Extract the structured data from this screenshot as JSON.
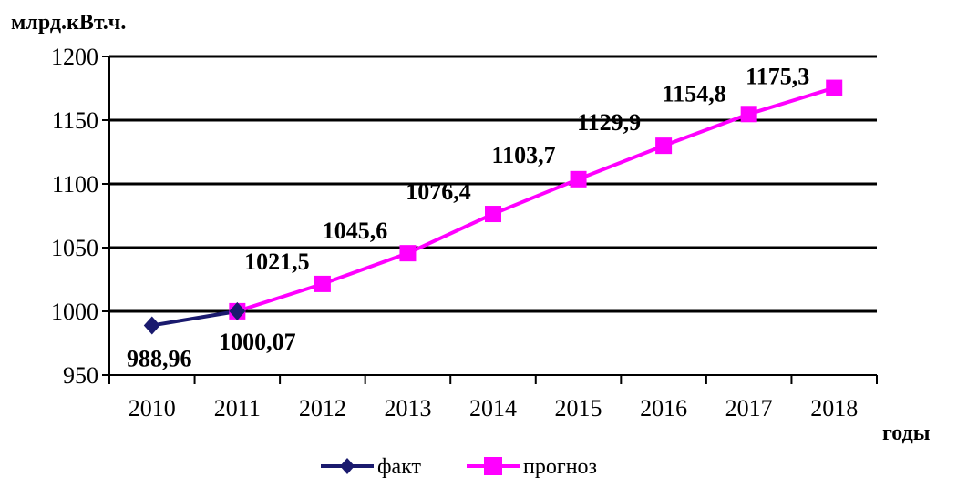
{
  "chart_data": {
    "type": "line",
    "ylabel": "млрд.кВт.ч.",
    "xlabel": "годы",
    "categories": [
      "2010",
      "2011",
      "2012",
      "2013",
      "2014",
      "2015",
      "2016",
      "2017",
      "2018"
    ],
    "ylim": [
      950,
      1200
    ],
    "yticks": [
      950,
      1000,
      1050,
      1100,
      1150,
      1200
    ],
    "grid": true,
    "legend_position": "bottom",
    "series": [
      {
        "name": "факт",
        "color": "#1a1a6e",
        "marker": "diamond",
        "points": [
          {
            "x": "2010",
            "y": 988.96,
            "label": "988,96"
          },
          {
            "x": "2011",
            "y": 1000.07,
            "label": "1000,07"
          }
        ]
      },
      {
        "name": "прогноз",
        "color": "#ff00ff",
        "marker": "square",
        "points": [
          {
            "x": "2011",
            "y": 1000.07
          },
          {
            "x": "2012",
            "y": 1021.5,
            "label": "1021,5"
          },
          {
            "x": "2013",
            "y": 1045.6,
            "label": "1045,6"
          },
          {
            "x": "2014",
            "y": 1076.4,
            "label": "1076,4"
          },
          {
            "x": "2015",
            "y": 1103.7,
            "label": "1103,7"
          },
          {
            "x": "2016",
            "y": 1129.9,
            "label": "1129,9"
          },
          {
            "x": "2017",
            "y": 1154.8,
            "label": "1154,8"
          },
          {
            "x": "2018",
            "y": 1175.3,
            "label": "1175,3"
          }
        ]
      }
    ]
  }
}
